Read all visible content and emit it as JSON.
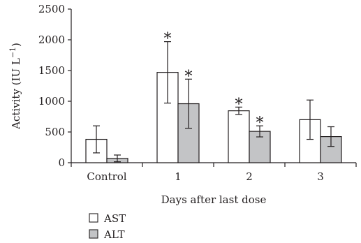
{
  "chart_data": {
    "type": "bar",
    "xlabel": "Days after last dose",
    "ylabel_main": "Activity (IU L",
    "ylabel_sup": "−1",
    "ylabel_close": ")",
    "ylim": [
      0,
      2500
    ],
    "yticks": [
      0,
      500,
      1000,
      1500,
      2000,
      2500
    ],
    "yticks_labels": [
      "0",
      "500",
      "1000",
      "1500",
      "2000",
      "2500"
    ],
    "grid": false,
    "legend_position": "bottom-left",
    "categories": [
      "Control",
      "1",
      "2",
      "3"
    ],
    "series": [
      {
        "name": "AST",
        "color": "#ffffff",
        "values": [
          380,
          1470,
          845,
          700
        ],
        "errors": [
          220,
          500,
          60,
          320
        ],
        "significant": [
          false,
          true,
          true,
          false
        ]
      },
      {
        "name": "ALT",
        "color": "#c3c4c6",
        "values": [
          70,
          960,
          510,
          425
        ],
        "errors": [
          55,
          400,
          90,
          160
        ],
        "significant": [
          false,
          true,
          true,
          false
        ]
      }
    ],
    "significance_marker": "*"
  }
}
